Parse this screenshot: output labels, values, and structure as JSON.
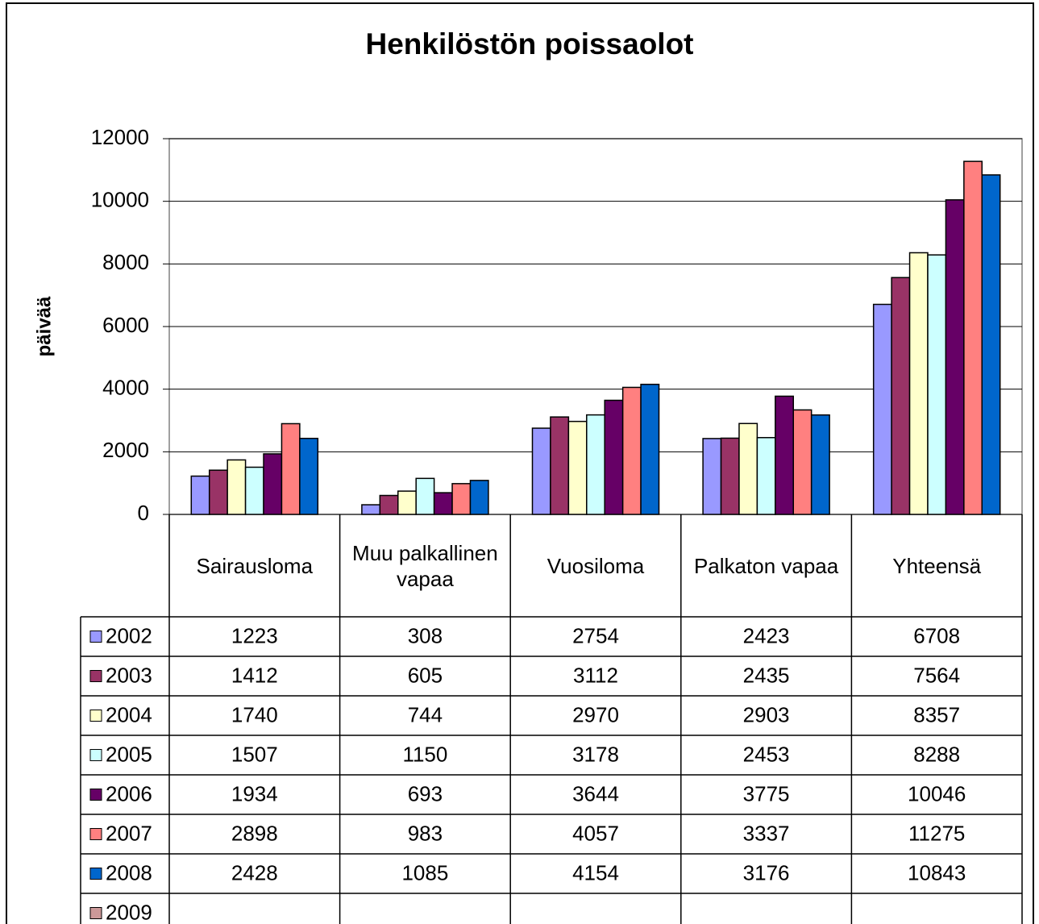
{
  "chart_data": {
    "type": "bar",
    "title": "Henkilöstön poissaolot",
    "y_label": "päivää",
    "categories": [
      "Sairausloma",
      "Muu palkallinen vapaa",
      "Vuosiloma",
      "Palkaton vapaa",
      "Yhteensä"
    ],
    "series": [
      {
        "name": "2002",
        "color": "#9999ff",
        "values": [
          1223,
          308,
          2754,
          2423,
          6708
        ]
      },
      {
        "name": "2003",
        "color": "#993366",
        "values": [
          1412,
          605,
          3112,
          2435,
          7564
        ]
      },
      {
        "name": "2004",
        "color": "#ffffcc",
        "values": [
          1740,
          744,
          2970,
          2903,
          8357
        ]
      },
      {
        "name": "2005",
        "color": "#ccffff",
        "values": [
          1507,
          1150,
          3178,
          2453,
          8288
        ]
      },
      {
        "name": "2006",
        "color": "#660066",
        "values": [
          1934,
          693,
          3644,
          3775,
          10046
        ]
      },
      {
        "name": "2007",
        "color": "#ff8080",
        "values": [
          2898,
          983,
          4057,
          3337,
          11275
        ]
      },
      {
        "name": "2008",
        "color": "#0066cc",
        "values": [
          2428,
          1085,
          4154,
          3176,
          10843
        ]
      },
      {
        "name": "2009",
        "color": "#cc9999",
        "values": [
          null,
          null,
          null,
          null,
          null
        ]
      }
    ],
    "ylim": [
      0,
      12000
    ],
    "yticks": [
      0,
      2000,
      4000,
      6000,
      8000,
      10000,
      12000
    ],
    "grid": true
  }
}
